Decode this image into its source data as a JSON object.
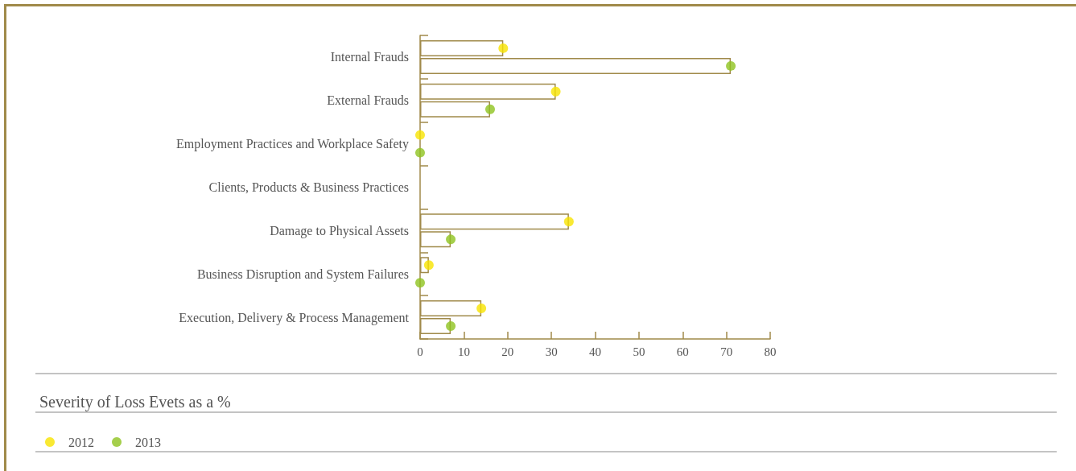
{
  "chart_data": {
    "type": "bar",
    "orientation": "horizontal",
    "title": "Severity of Loss Evets as a %",
    "categories": [
      "Internal Frauds",
      "External Frauds",
      "Employment Practices and Workplace Safety",
      "Clients, Products & Business Practices",
      "Damage to Physical Assets",
      "Business Disruption and System Failures",
      "Execution, Delivery & Process Management"
    ],
    "series": [
      {
        "color": "#ffffff",
        "values": [
          19,
          31,
          0,
          null,
          34,
          2,
          14
        ]
      },
      {
        "color": "#ffffff",
        "values": [
          71,
          16,
          0,
          null,
          7,
          0,
          7
        ]
      },
      {
        "type": "scatter",
        "name": "2012",
        "color": "#f7e400",
        "values": [
          19,
          31,
          0,
          null,
          34,
          2,
          14
        ]
      },
      {
        "type": "scatter",
        "name": "2013",
        "color": "#8fc31f",
        "values": [
          71,
          16,
          0,
          null,
          7,
          0,
          7
        ]
      }
    ],
    "xlim": [
      0,
      80
    ],
    "xticks": [
      0,
      10,
      20,
      30,
      40,
      50,
      60,
      70,
      80
    ],
    "legend": "bottom left",
    "marker": "circle",
    "grid": false
  }
}
